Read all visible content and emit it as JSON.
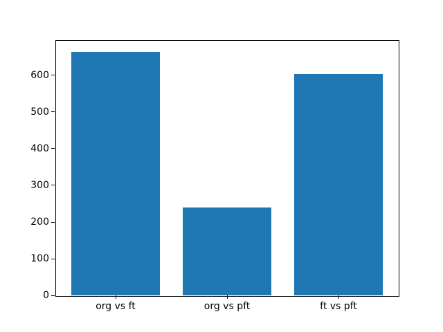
{
  "chart_data": {
    "type": "bar",
    "categories": [
      "org vs ft",
      "org vs pft",
      "ft vs pft"
    ],
    "values": [
      663,
      240,
      604
    ],
    "title": "",
    "xlabel": "",
    "ylabel": "",
    "ylim": [
      0,
      696
    ],
    "yticks": [
      0,
      100,
      200,
      300,
      400,
      500,
      600
    ],
    "bar_color": "#1f77b4",
    "frame_color": "#000000",
    "background_color": "#ffffff",
    "grid": false,
    "legend": "none"
  }
}
